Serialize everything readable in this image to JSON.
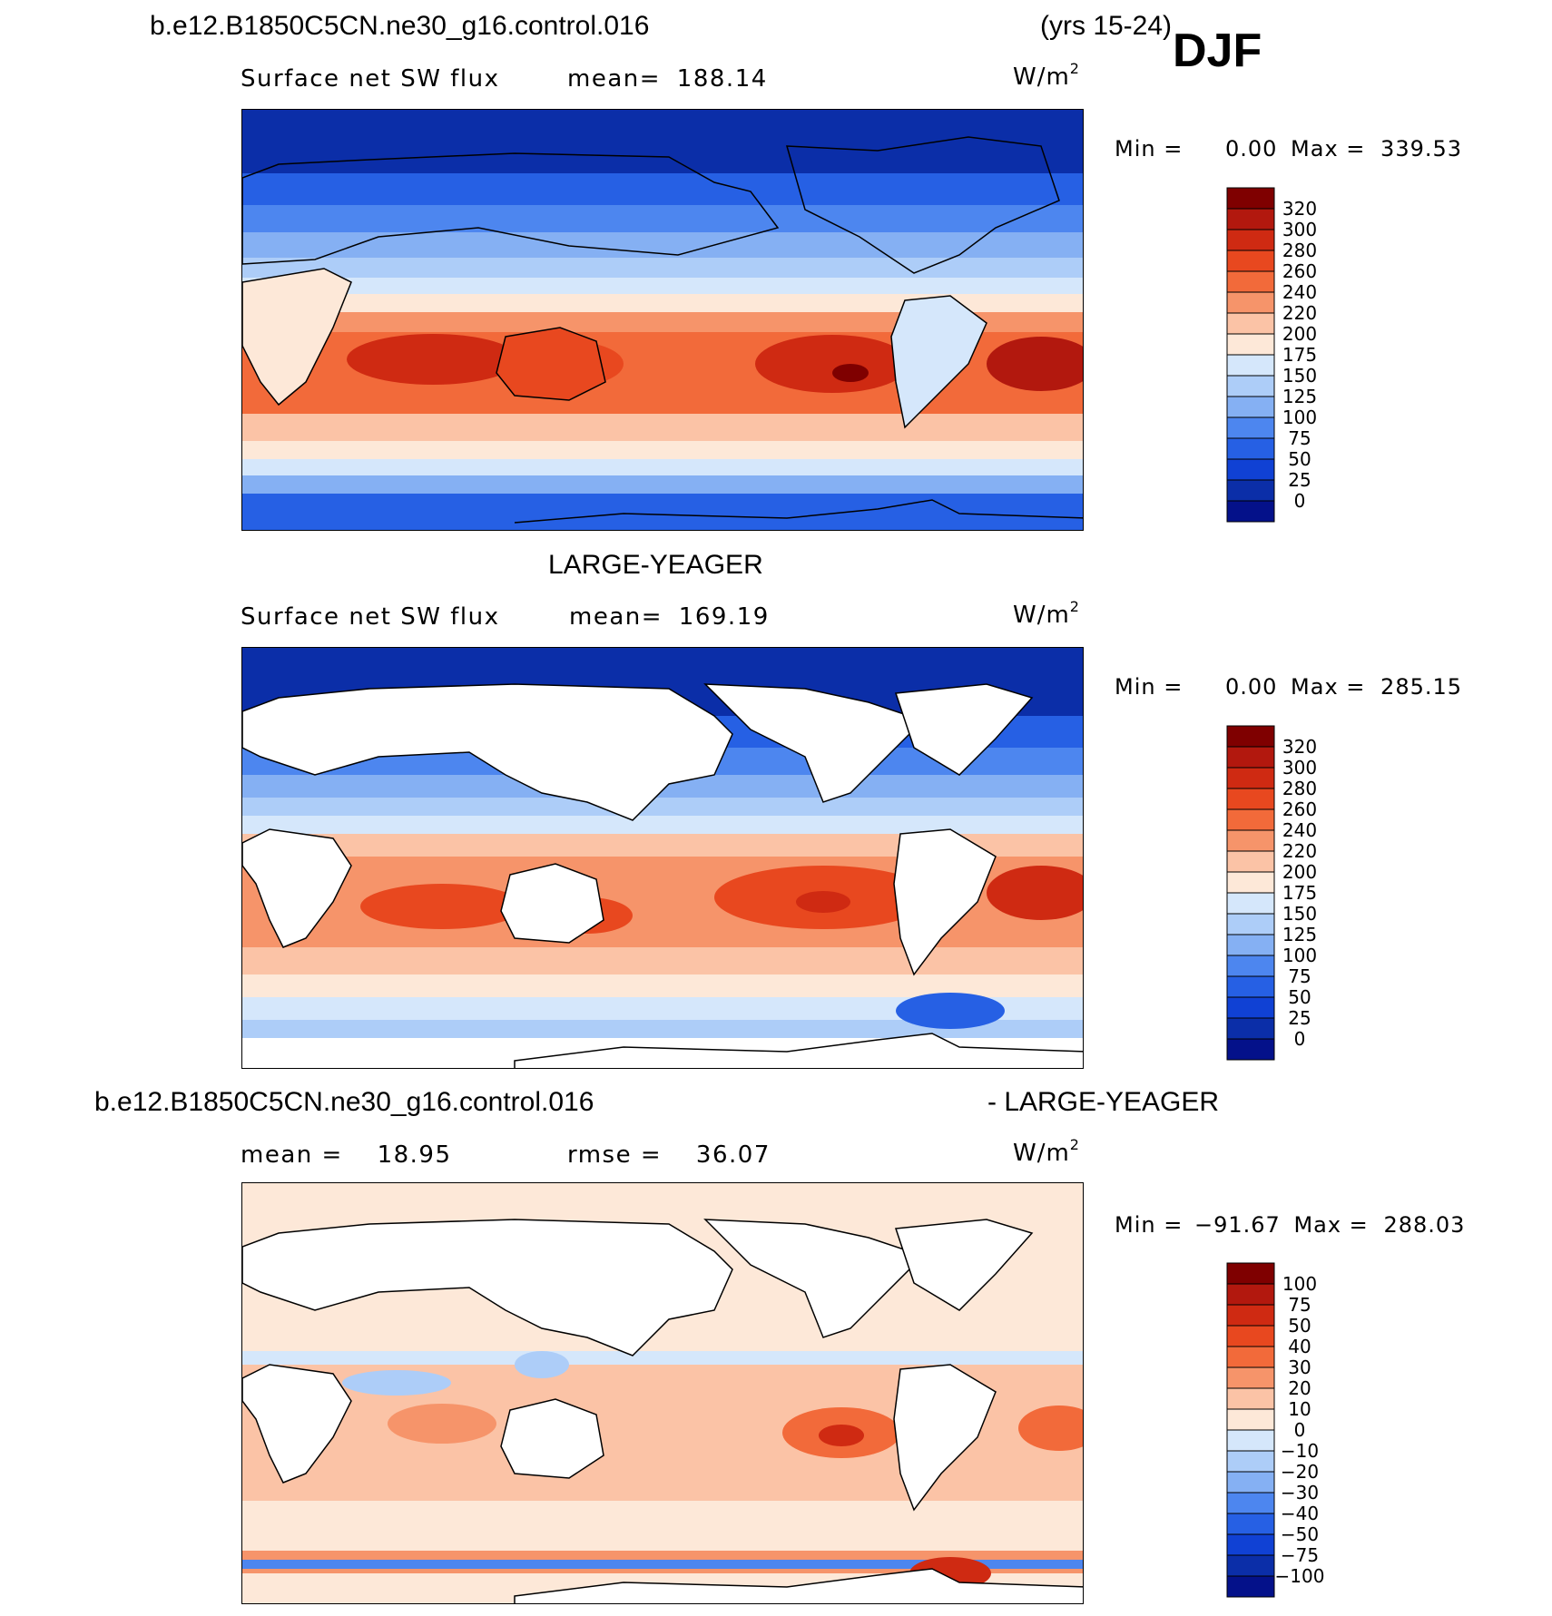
{
  "header": {
    "case_name": "b.e12.B1850C5CN.ne30_g16.control.016",
    "years": "(yrs 15-24)",
    "season": "DJF"
  },
  "panels": [
    {
      "id": "test",
      "title": "",
      "variable": "Surface net SW flux",
      "stat_label": "mean=",
      "stat_value": "188.14",
      "stat2_label": "",
      "stat2_value": "",
      "units_main": "W/m",
      "units_sup": "2",
      "min_label": "Min =",
      "min_value": "0.00",
      "max_label": "Max =",
      "max_value": "339.53",
      "levels": [
        "320",
        "300",
        "280",
        "260",
        "240",
        "220",
        "200",
        "175",
        "150",
        "125",
        "100",
        "75",
        "50",
        "25",
        "0"
      ],
      "colors": [
        "#7f0000",
        "#b2180e",
        "#cf2a12",
        "#e8481f",
        "#f26a3a",
        "#f6946a",
        "#fbc3a6",
        "#fde8d8",
        "#d5e7fb",
        "#adcdf8",
        "#85b0f3",
        "#4d86ef",
        "#2660e4",
        "#1041d4",
        "#0b2ea8",
        "#04118a"
      ]
    },
    {
      "id": "control",
      "title": "LARGE-YEAGER",
      "variable": "Surface net SW flux",
      "stat_label": "mean=",
      "stat_value": "169.19",
      "stat2_label": "",
      "stat2_value": "",
      "units_main": "W/m",
      "units_sup": "2",
      "min_label": "Min =",
      "min_value": "0.00",
      "max_label": "Max =",
      "max_value": "285.15",
      "levels": [
        "320",
        "300",
        "280",
        "260",
        "240",
        "220",
        "200",
        "175",
        "150",
        "125",
        "100",
        "75",
        "50",
        "25",
        "0"
      ],
      "colors": [
        "#7f0000",
        "#b2180e",
        "#cf2a12",
        "#e8481f",
        "#f26a3a",
        "#f6946a",
        "#fbc3a6",
        "#fde8d8",
        "#d5e7fb",
        "#adcdf8",
        "#85b0f3",
        "#4d86ef",
        "#2660e4",
        "#1041d4",
        "#0b2ea8",
        "#04118a"
      ]
    },
    {
      "id": "diff",
      "title_left": "b.e12.B1850C5CN.ne30_g16.control.016",
      "title_right": "- LARGE-YEAGER",
      "variable": "",
      "stat_label": "mean =",
      "stat_value": "18.95",
      "stat2_label": "rmse =",
      "stat2_value": "36.07",
      "units_main": "W/m",
      "units_sup": "2",
      "min_label": "Min =",
      "min_value": "−91.67",
      "max_label": "Max =",
      "max_value": "288.03",
      "levels": [
        "100",
        "75",
        "50",
        "40",
        "30",
        "20",
        "10",
        "0",
        "−10",
        "−20",
        "−30",
        "−40",
        "−50",
        "−75",
        "−100"
      ],
      "colors": [
        "#7f0000",
        "#b2180e",
        "#cf2a12",
        "#e8481f",
        "#f26a3a",
        "#f6946a",
        "#fbc3a6",
        "#fde8d8",
        "#d5e7fb",
        "#adcdf8",
        "#85b0f3",
        "#4d86ef",
        "#2660e4",
        "#1041d4",
        "#0b2ea8",
        "#04118a"
      ]
    }
  ]
}
